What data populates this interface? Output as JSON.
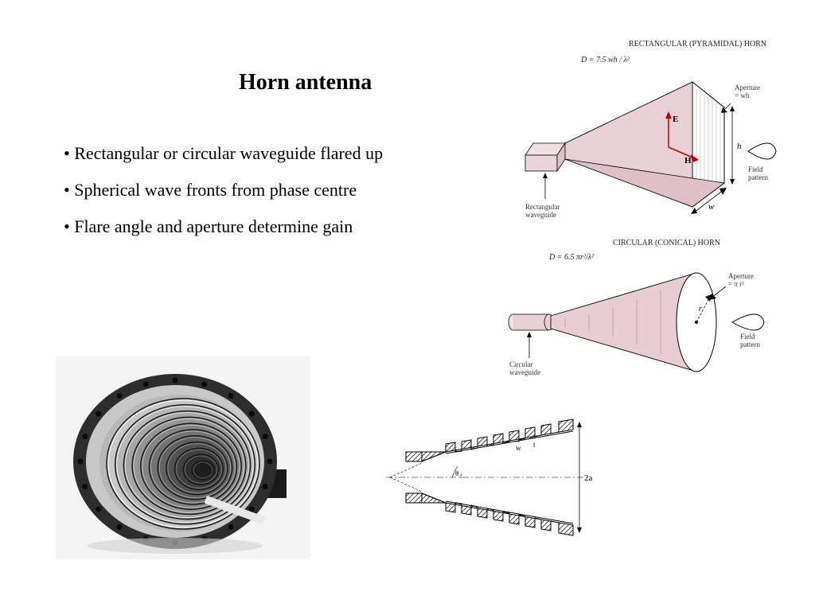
{
  "title": "Horn antenna",
  "bullets": [
    "Rectangular or circular waveguide flared up",
    "Spherical wave fronts from phase centre",
    "Flare angle and aperture determine gain"
  ],
  "diagrams": {
    "pyramidal": {
      "title": "RECTANGULAR (PYRAMIDAL) HORN",
      "formula": "D = 7.5  wh / λ²",
      "labels": {
        "waveguide": "Rectangular\nwaveguide",
        "aperture": "Aperture\n= wh",
        "h": "h",
        "w": "w",
        "E": "E",
        "H": "H",
        "field": "Field\npattern"
      },
      "fill": "#e8c8d0",
      "stroke": "#000000"
    },
    "conical": {
      "title": "CIRCULAR (CONICAL) HORN",
      "formula": "D = 6.5 πr²/λ²",
      "labels": {
        "waveguide": "Circular\nwaveguide",
        "aperture": "Aperture\n= π r²",
        "r": "r",
        "field": "Field\npattern"
      },
      "fill": "#e8c8d0",
      "stroke": "#000000"
    },
    "crosssection": {
      "labels": {
        "theta": "θf",
        "w": "w",
        "t": "t",
        "twoA": "2a"
      },
      "stroke": "#000000"
    }
  },
  "photo": {
    "rings": 11,
    "bolts": 20,
    "bg": "#f2f2f2",
    "flange": "#2a2a2a",
    "metal_light": "#d8d8d8",
    "metal_mid": "#9a9a9a",
    "metal_dark": "#303030"
  }
}
